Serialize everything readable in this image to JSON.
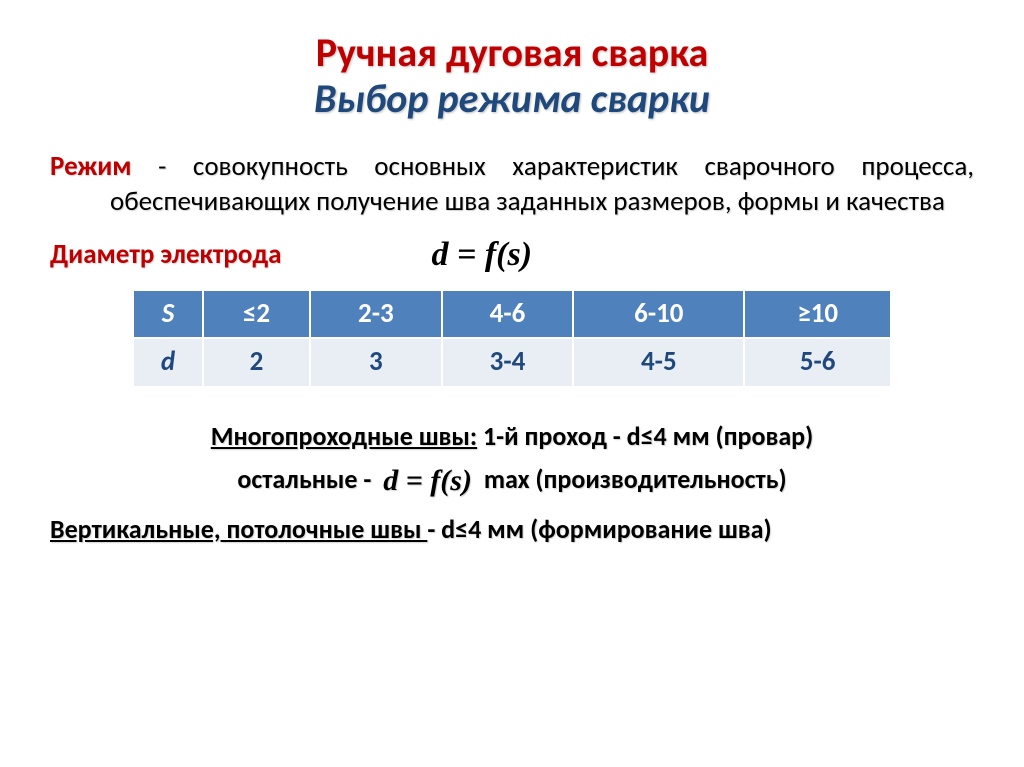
{
  "colors": {
    "accent_red": "#c00000",
    "accent_blue": "#1f497d",
    "tbl_hd_bg": "#4f81bd",
    "tbl_row_bg": "#e9edf4",
    "tbl_row_fg": "#1f497d"
  },
  "title": {
    "main": "Ручная дуговая сварка",
    "sub": "Выбор режима сварки"
  },
  "definition": {
    "keyword": "Режим",
    "text": " - совокупность основных характеристик сварочного процесса, обеспечивающих получение шва заданных размеров, формы и качества"
  },
  "section_diameter": "Диаметр электрода",
  "formula1": "d = f(s)",
  "table": {
    "header_label": "S",
    "header_cells": [
      "≤2",
      "2-3",
      "4-6",
      "6-10",
      "≥10"
    ],
    "row_label": "d",
    "row_cells": [
      "2",
      "3",
      "3-4",
      "4-5",
      "5-6"
    ]
  },
  "notes": {
    "line1_u": "Многопроходные швы:",
    "line1_rest": " 1-й проход - d≤4 мм (провар)",
    "line2_pre": "остальные - ",
    "line2_formula": "d = f(s)",
    "line2_post": "  max (производительность)",
    "line3_u": "Вертикальные, потолочные швы ",
    "line3_rest": "- d≤4 мм (формирование шва)"
  }
}
